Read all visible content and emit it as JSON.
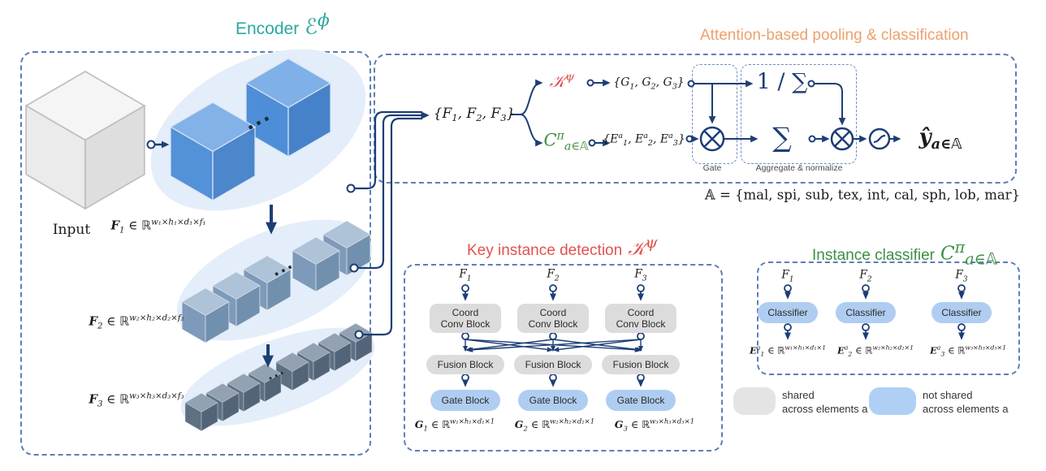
{
  "encoder": {
    "title": "Encoder",
    "symbol": "ℰ^{ϕ}",
    "input_label": "Input",
    "dots": "...",
    "f1": "**F**_{1} ∈ ℝ^{w₁×h₁×d₁×f₁}",
    "f2": "**F**_{2} ∈ ℝ^{w₂×h₂×d₂×f₂}",
    "f3": "**F**_{3} ∈ ℝ^{w₃×h₃×d₃×f₃}"
  },
  "attention": {
    "title": "Attention-based pooling & classification",
    "f_set": "{F_{1}, F_{2}, F_{3}}",
    "kid_symbol": "𝒦^{ψ}",
    "ic_symbol": "C^{π}_{a∈𝔸}",
    "g_set": "{G_{1}, G_{2}, G_{3}}",
    "e_set": "{E^{a}_{1}, E^{a}_{2}, E^{a}_{3}}",
    "one_over_sum": "1 / ∑",
    "sum": "∑",
    "gate_label": "Gate",
    "aggregate_label": "Aggregate & normalize",
    "y_hat": "ŷ_{a∈𝔸}",
    "a_set": "𝔸 = {mal, spi, sub, tex, int, cal, sph, lob, mar}"
  },
  "kid": {
    "title": "Key instance detection",
    "symbol": "𝒦^{ψ}",
    "inputs": [
      "F_{1}",
      "F_{2}",
      "F_{3}"
    ],
    "coord_block": "Coord\nConv Block",
    "fusion_block": "Fusion Block",
    "gate_block": "Gate Block",
    "outputs": [
      "**G**_{1} ∈ ℝ^{w₁×h₁×d₁×1}",
      "**G**_{2} ∈ ℝ^{w₂×h₂×d₂×1}",
      "**G**_{3} ∈ ℝ^{w₃×h₃×d₃×1}"
    ]
  },
  "ic": {
    "title": "Instance classifier",
    "symbol": "C^{π}_{a∈𝔸}",
    "inputs": [
      "F_{1}",
      "F_{2}",
      "F_{3}"
    ],
    "classifier_block": "Classifier",
    "outputs": [
      "**E**^{a}_{1} ∈ ℝ^{w₁×h₁×d₁×1}",
      "**E**^{a}_{2} ∈ ℝ^{w₂×h₂×d₂×1}",
      "**E**^{a}_{3} ∈ ℝ^{w₃×h₃×d₃×1}"
    ]
  },
  "legend": {
    "shared": "shared\nacross elements a",
    "not_shared": "not shared\nacross elements a"
  },
  "colors": {
    "teal": "#2BA8A1",
    "orange": "#EDA06E",
    "red": "#E0524E",
    "green": "#3D8F44",
    "navy": "#1D3E75",
    "panel_border": "#5B7FB5",
    "block_gray": "#DCDCDC",
    "block_blue": "#AFCDF1",
    "blob_blue": "#E4EEFA"
  }
}
